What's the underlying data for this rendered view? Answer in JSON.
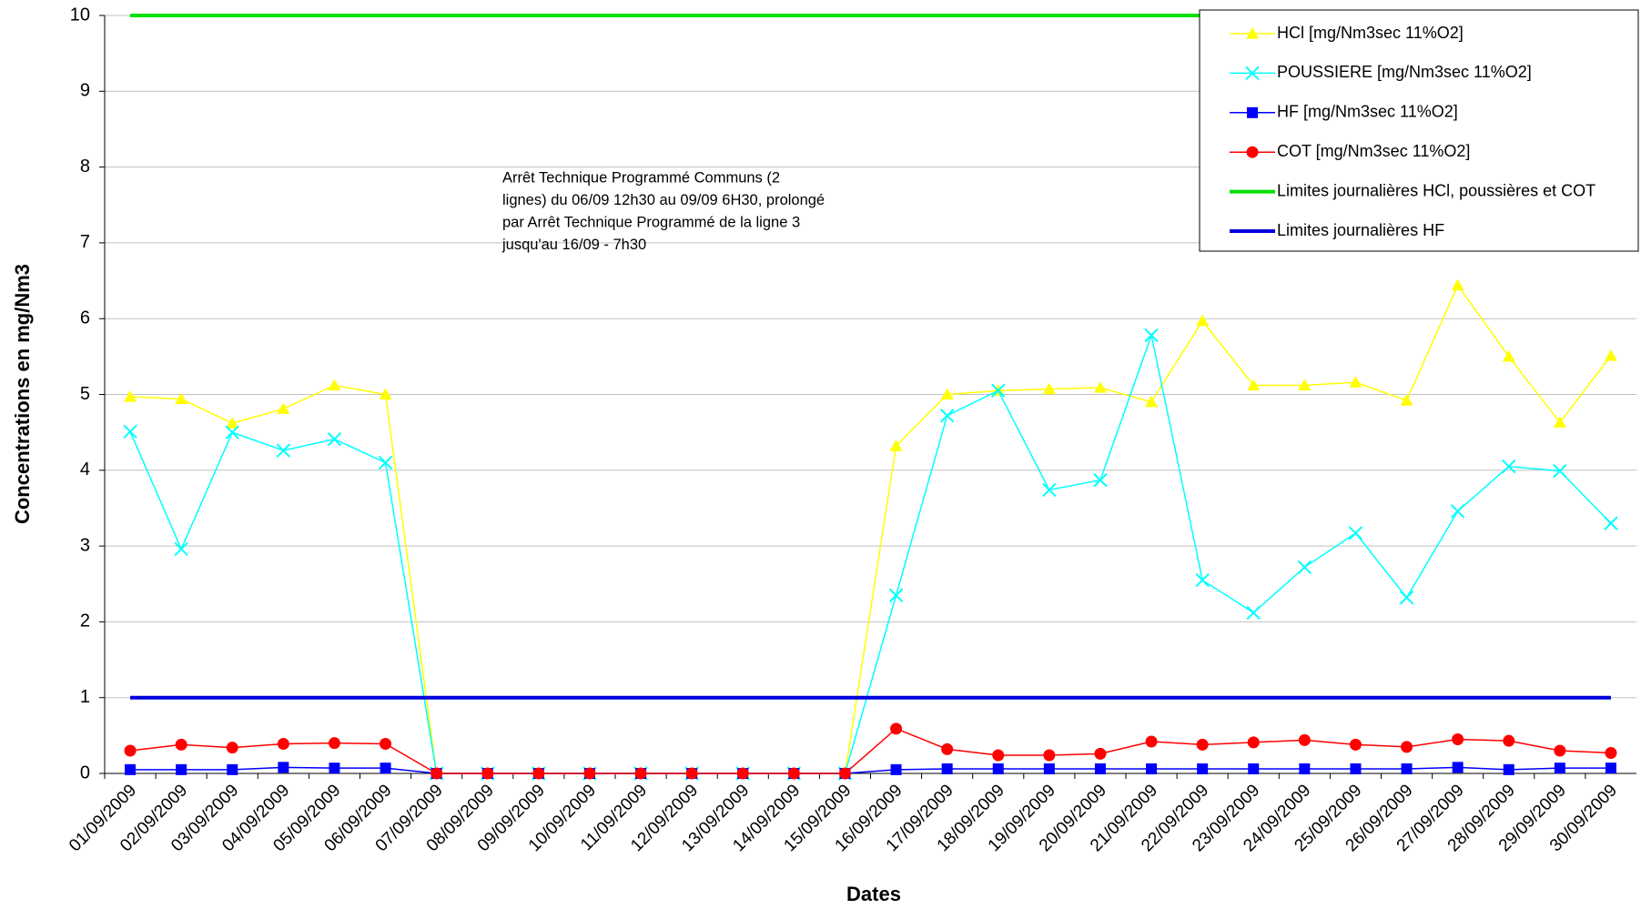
{
  "chart_data": {
    "type": "line",
    "xlabel": "Dates",
    "ylabel": "Concentrations en mg/Nm3",
    "annotation": [
      "Arrêt Technique Programmé Communs (2",
      "lignes) du 06/09 12h30 au 09/09 6H30, prolongé",
      "par Arrêt Technique Programmé de la ligne 3",
      "jusqu'au 16/09 - 7h30"
    ],
    "categories": [
      "01/09/2009",
      "02/09/2009",
      "03/09/2009",
      "04/09/2009",
      "05/09/2009",
      "06/09/2009",
      "07/09/2009",
      "08/09/2009",
      "09/09/2009",
      "10/09/2009",
      "11/09/2009",
      "12/09/2009",
      "13/09/2009",
      "14/09/2009",
      "15/09/2009",
      "16/09/2009",
      "17/09/2009",
      "18/09/2009",
      "19/09/2009",
      "20/09/2009",
      "21/09/2009",
      "22/09/2009",
      "23/09/2009",
      "24/09/2009",
      "25/09/2009",
      "26/09/2009",
      "27/09/2009",
      "28/09/2009",
      "29/09/2009",
      "30/09/2009"
    ],
    "series": [
      {
        "name": "HCl [mg/Nm3sec 11%O2]",
        "color": "#ffff00",
        "marker": "triangle",
        "width": 1.5,
        "values": [
          4.97,
          4.94,
          4.62,
          4.81,
          5.12,
          5.0,
          0,
          0,
          0,
          0,
          0,
          0,
          0,
          0,
          0,
          4.32,
          5.0,
          5.05,
          5.07,
          5.09,
          4.9,
          5.97,
          5.12,
          5.12,
          5.16,
          4.92,
          6.44,
          5.5,
          4.63,
          5.51
        ]
      },
      {
        "name": "POUSSIERE [mg/Nm3sec 11%O2]",
        "color": "#00ffff",
        "marker": "x",
        "width": 1.5,
        "values": [
          4.51,
          2.96,
          4.5,
          4.26,
          4.41,
          4.1,
          0,
          0,
          0,
          0,
          0,
          0,
          0,
          0,
          0,
          2.35,
          4.72,
          5.05,
          3.74,
          3.87,
          5.78,
          2.55,
          2.12,
          2.72,
          3.17,
          2.32,
          3.46,
          4.05,
          3.99,
          3.3
        ]
      },
      {
        "name": "HF [mg/Nm3sec 11%O2]",
        "color": "#0000ff",
        "marker": "square",
        "width": 1.5,
        "values": [
          0.05,
          0.05,
          0.05,
          0.08,
          0.07,
          0.07,
          0,
          0,
          0,
          0,
          0,
          0,
          0,
          0,
          0,
          0.05,
          0.06,
          0.06,
          0.06,
          0.06,
          0.06,
          0.06,
          0.06,
          0.06,
          0.06,
          0.06,
          0.08,
          0.05,
          0.07,
          0.07
        ]
      },
      {
        "name": "COT [mg/Nm3sec 11%O2]",
        "color": "#ff0000",
        "marker": "circle",
        "width": 1.5,
        "values": [
          0.3,
          0.38,
          0.34,
          0.39,
          0.4,
          0.39,
          0,
          0,
          0,
          0,
          0,
          0,
          0,
          0,
          0,
          0.59,
          0.32,
          0.24,
          0.24,
          0.26,
          0.42,
          0.38,
          0.41,
          0.44,
          0.38,
          0.35,
          0.45,
          0.43,
          0.3,
          0.27
        ]
      },
      {
        "name": "Limites journalières HCl, poussières et COT",
        "color": "#00e000",
        "marker": "none",
        "width": 4,
        "values": [
          10,
          10,
          10,
          10,
          10,
          10,
          10,
          10,
          10,
          10,
          10,
          10,
          10,
          10,
          10,
          10,
          10,
          10,
          10,
          10,
          10,
          10,
          10,
          10,
          10,
          10,
          10,
          10,
          10,
          10
        ]
      },
      {
        "name": "Limites journalières HF",
        "color": "#0000dd",
        "marker": "none",
        "width": 4,
        "values": [
          1,
          1,
          1,
          1,
          1,
          1,
          1,
          1,
          1,
          1,
          1,
          1,
          1,
          1,
          1,
          1,
          1,
          1,
          1,
          1,
          1,
          1,
          1,
          1,
          1,
          1,
          1,
          1,
          1,
          1
        ]
      }
    ],
    "ylim": [
      0,
      10
    ],
    "yticks": [
      0,
      1,
      2,
      3,
      4,
      5,
      6,
      7,
      8,
      9,
      10
    ],
    "grid": true,
    "legend": "top-right"
  }
}
